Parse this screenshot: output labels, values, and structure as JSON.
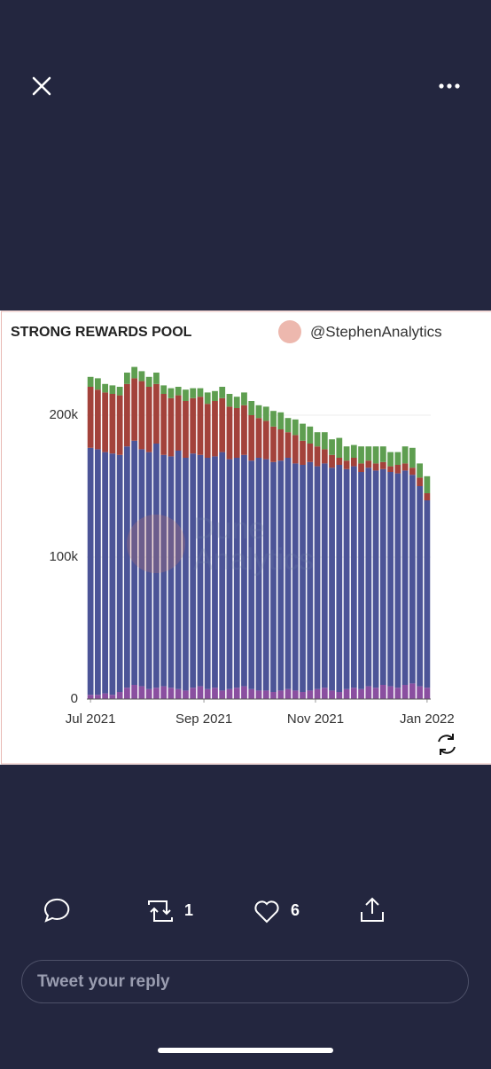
{
  "chart_data": {
    "type": "stacked_bar",
    "title": "STRONG REWARDS POOL",
    "author": "@StephenAnalytics",
    "watermark": [
      "Dune",
      "Analytics"
    ],
    "x": [
      0,
      4,
      8,
      12,
      16,
      20,
      24,
      28,
      32,
      36,
      40,
      44,
      48,
      52,
      56,
      60,
      64,
      68,
      72,
      76,
      80,
      84,
      88,
      92,
      96,
      100,
      104,
      108,
      112,
      116,
      120,
      124,
      128,
      132,
      136,
      140,
      144,
      148,
      152,
      156,
      160,
      164,
      168,
      172,
      176,
      180,
      184
    ],
    "xlim": [
      -2,
      186
    ],
    "xticks": [
      {
        "value": 0,
        "label": "Jul 2021"
      },
      {
        "value": 62,
        "label": "Sep 2021"
      },
      {
        "value": 123,
        "label": "Nov 2021"
      },
      {
        "value": 184,
        "label": "Jan 2022"
      }
    ],
    "ylim": [
      0,
      240000
    ],
    "yticks": [
      0,
      {
        "value": 100000,
        "label": "100k"
      },
      {
        "value": 200000,
        "label": "200k"
      }
    ],
    "grid": true,
    "series": [
      {
        "color": "#8a4fa0",
        "values": [
          3000,
          3000,
          4000,
          3000,
          5000,
          8000,
          10000,
          9000,
          7000,
          8000,
          9000,
          8000,
          7000,
          6000,
          8000,
          9000,
          7000,
          8000,
          6000,
          7000,
          8000,
          9000,
          7000,
          6000,
          6000,
          5000,
          6000,
          7000,
          6000,
          5000,
          6000,
          7000,
          8000,
          6000,
          5000,
          7000,
          8000,
          7000,
          9000,
          8000,
          10000,
          9000,
          8000,
          10000,
          11000,
          9000,
          8000
        ]
      },
      {
        "color": "#4c5497",
        "values": [
          174000,
          173000,
          170000,
          170000,
          167000,
          170000,
          172000,
          167000,
          167000,
          172000,
          163000,
          163000,
          168000,
          164000,
          165000,
          163000,
          163000,
          163000,
          168000,
          162000,
          162000,
          163000,
          161000,
          164000,
          163000,
          162000,
          162000,
          163000,
          160000,
          160000,
          161000,
          157000,
          158000,
          157000,
          160000,
          155000,
          156000,
          153000,
          154000,
          153000,
          152000,
          151000,
          151000,
          151000,
          147000,
          141000,
          132000
        ]
      },
      {
        "color": "#a3423b",
        "values": [
          43000,
          42000,
          42000,
          42000,
          42000,
          44000,
          44000,
          48000,
          46000,
          42000,
          43000,
          41000,
          39000,
          40000,
          39000,
          41000,
          38000,
          39000,
          38000,
          37000,
          35000,
          35000,
          32000,
          28000,
          27000,
          25000,
          22000,
          18000,
          20000,
          17000,
          13000,
          14000,
          10000,
          9000,
          5000,
          6000,
          6000,
          6000,
          5000,
          5000,
          5000,
          4000,
          6000,
          5000,
          5000,
          6000,
          5000
        ]
      },
      {
        "color": "#5e9e50",
        "values": [
          7000,
          8000,
          6000,
          6000,
          6000,
          8000,
          8000,
          7000,
          7000,
          8000,
          6000,
          7000,
          6000,
          8000,
          7000,
          6000,
          8000,
          7000,
          8000,
          9000,
          8000,
          9000,
          10000,
          9000,
          10000,
          11000,
          12000,
          10000,
          11000,
          12000,
          12000,
          10000,
          12000,
          11000,
          14000,
          10000,
          9000,
          12000,
          10000,
          12000,
          11000,
          10000,
          9000,
          12000,
          14000,
          10000,
          12000
        ]
      }
    ]
  },
  "actions": {
    "retweets": 1,
    "likes": 6,
    "reply_placeholder": "Tweet your reply"
  }
}
